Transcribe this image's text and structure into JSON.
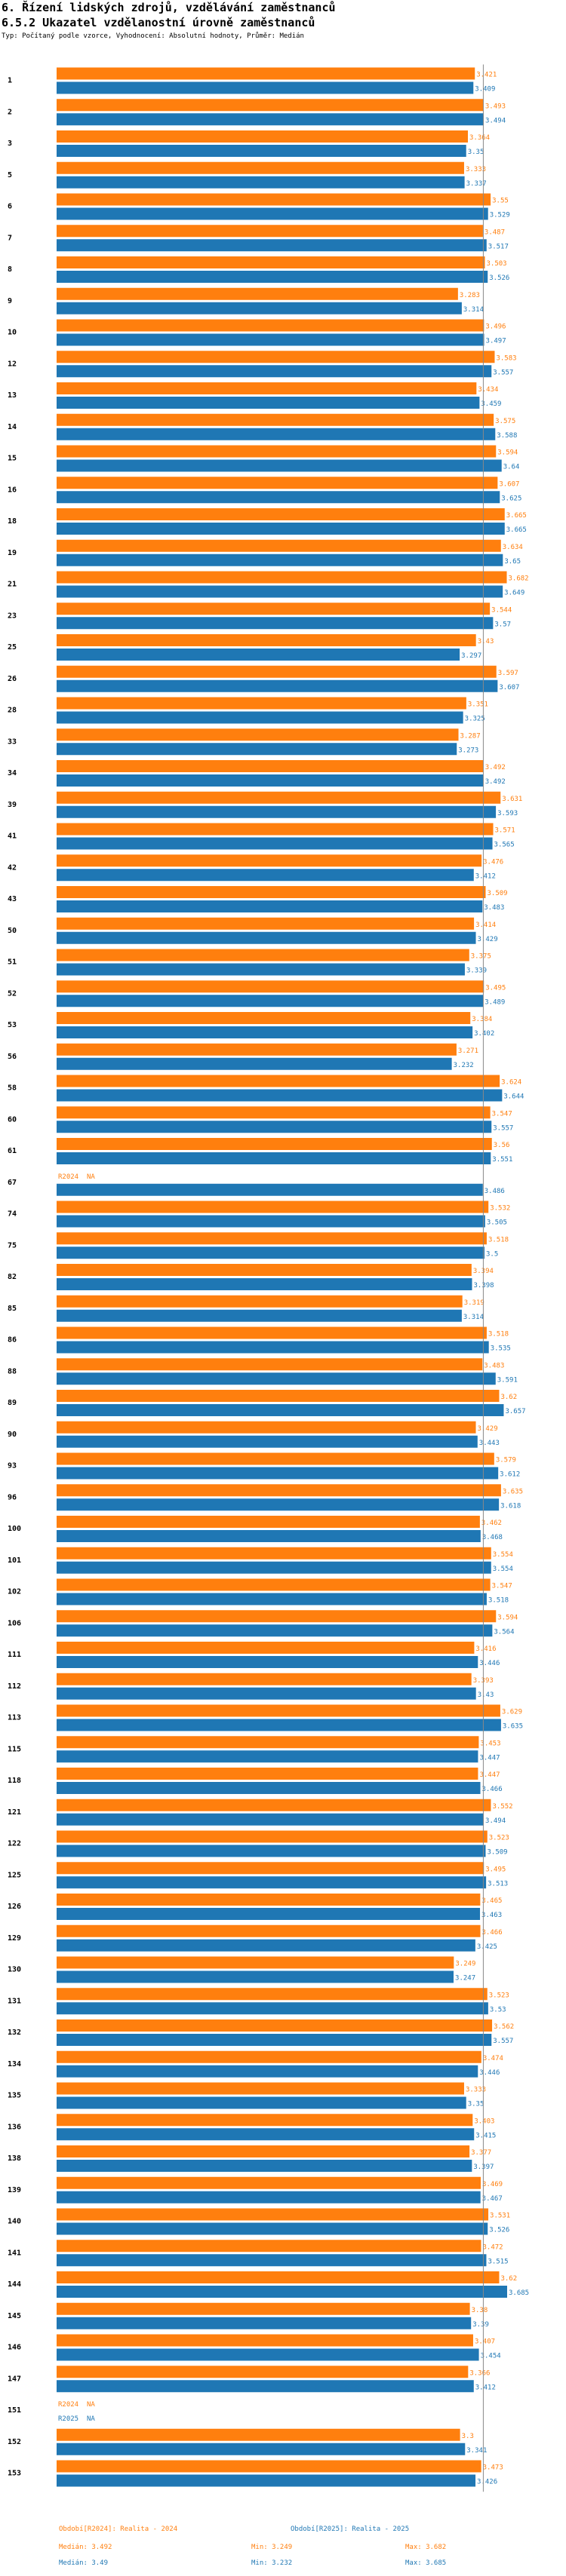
{
  "title": "6. Řízení lidských zdrojů, vzdělávání zaměstnanců",
  "subtitle": "6.5.2 Ukazatel vzdělanostní úrovně zaměstnanců",
  "description": "Typ: Počítaný podle vzorce, Vyhodnocení: Absolutní hodnoty, Průměr: Medián",
  "colors": {
    "r2024": "#ff7f0e",
    "r2025": "#1f77b4",
    "median_line": "#888888"
  },
  "chart_data": {
    "type": "bar",
    "orientation": "horizontal",
    "xlim": [
      0,
      3.685
    ],
    "median_reference": 3.49,
    "na_label": "NA",
    "series_labels": [
      "R2024",
      "R2025"
    ],
    "groups": [
      {
        "id": "1",
        "r2024": 3.421,
        "r2025": 3.409
      },
      {
        "id": "2",
        "r2024": 3.493,
        "r2025": 3.494
      },
      {
        "id": "3",
        "r2024": 3.364,
        "r2025": 3.35
      },
      {
        "id": "5",
        "r2024": 3.333,
        "r2025": 3.337
      },
      {
        "id": "6",
        "r2024": 3.55,
        "r2025": 3.529
      },
      {
        "id": "7",
        "r2024": 3.487,
        "r2025": 3.517
      },
      {
        "id": "8",
        "r2024": 3.503,
        "r2025": 3.526
      },
      {
        "id": "9",
        "r2024": 3.283,
        "r2025": 3.314
      },
      {
        "id": "10",
        "r2024": 3.496,
        "r2025": 3.497
      },
      {
        "id": "12",
        "r2024": 3.583,
        "r2025": 3.557
      },
      {
        "id": "13",
        "r2024": 3.434,
        "r2025": 3.459
      },
      {
        "id": "14",
        "r2024": 3.575,
        "r2025": 3.588
      },
      {
        "id": "15",
        "r2024": 3.594,
        "r2025": 3.64
      },
      {
        "id": "16",
        "r2024": 3.607,
        "r2025": 3.625
      },
      {
        "id": "18",
        "r2024": 3.665,
        "r2025": 3.665
      },
      {
        "id": "19",
        "r2024": 3.634,
        "r2025": 3.65
      },
      {
        "id": "21",
        "r2024": 3.682,
        "r2025": 3.649
      },
      {
        "id": "23",
        "r2024": 3.544,
        "r2025": 3.57
      },
      {
        "id": "25",
        "r2024": 3.43,
        "r2025": 3.297
      },
      {
        "id": "26",
        "r2024": 3.597,
        "r2025": 3.607
      },
      {
        "id": "28",
        "r2024": 3.351,
        "r2025": 3.325
      },
      {
        "id": "33",
        "r2024": 3.287,
        "r2025": 3.273
      },
      {
        "id": "34",
        "r2024": 3.492,
        "r2025": 3.492
      },
      {
        "id": "39",
        "r2024": 3.631,
        "r2025": 3.593
      },
      {
        "id": "41",
        "r2024": 3.571,
        "r2025": 3.565
      },
      {
        "id": "42",
        "r2024": 3.476,
        "r2025": 3.412
      },
      {
        "id": "43",
        "r2024": 3.509,
        "r2025": 3.483
      },
      {
        "id": "50",
        "r2024": 3.414,
        "r2025": 3.429
      },
      {
        "id": "51",
        "r2024": 3.375,
        "r2025": 3.339
      },
      {
        "id": "52",
        "r2024": 3.495,
        "r2025": 3.489
      },
      {
        "id": "53",
        "r2024": 3.384,
        "r2025": 3.402
      },
      {
        "id": "56",
        "r2024": 3.271,
        "r2025": 3.232
      },
      {
        "id": "58",
        "r2024": 3.624,
        "r2025": 3.644
      },
      {
        "id": "60",
        "r2024": 3.547,
        "r2025": 3.557
      },
      {
        "id": "61",
        "r2024": 3.56,
        "r2025": 3.551
      },
      {
        "id": "67",
        "r2024": null,
        "r2025": 3.486
      },
      {
        "id": "74",
        "r2024": 3.532,
        "r2025": 3.505
      },
      {
        "id": "75",
        "r2024": 3.518,
        "r2025": 3.5
      },
      {
        "id": "82",
        "r2024": 3.394,
        "r2025": 3.398
      },
      {
        "id": "85",
        "r2024": 3.319,
        "r2025": 3.314
      },
      {
        "id": "86",
        "r2024": 3.518,
        "r2025": 3.535
      },
      {
        "id": "88",
        "r2024": 3.483,
        "r2025": 3.591
      },
      {
        "id": "89",
        "r2024": 3.62,
        "r2025": 3.657
      },
      {
        "id": "90",
        "r2024": 3.429,
        "r2025": 3.443
      },
      {
        "id": "93",
        "r2024": 3.579,
        "r2025": 3.612
      },
      {
        "id": "96",
        "r2024": 3.635,
        "r2025": 3.618
      },
      {
        "id": "100",
        "r2024": 3.462,
        "r2025": 3.468
      },
      {
        "id": "101",
        "r2024": 3.554,
        "r2025": 3.554
      },
      {
        "id": "102",
        "r2024": 3.547,
        "r2025": 3.518
      },
      {
        "id": "106",
        "r2024": 3.594,
        "r2025": 3.564
      },
      {
        "id": "111",
        "r2024": 3.416,
        "r2025": 3.446
      },
      {
        "id": "112",
        "r2024": 3.393,
        "r2025": 3.43
      },
      {
        "id": "113",
        "r2024": 3.629,
        "r2025": 3.635
      },
      {
        "id": "115",
        "r2024": 3.453,
        "r2025": 3.447
      },
      {
        "id": "118",
        "r2024": 3.447,
        "r2025": 3.466
      },
      {
        "id": "121",
        "r2024": 3.552,
        "r2025": 3.494
      },
      {
        "id": "122",
        "r2024": 3.523,
        "r2025": 3.509
      },
      {
        "id": "125",
        "r2024": 3.495,
        "r2025": 3.513
      },
      {
        "id": "126",
        "r2024": 3.465,
        "r2025": 3.463
      },
      {
        "id": "129",
        "r2024": 3.466,
        "r2025": 3.425
      },
      {
        "id": "130",
        "r2024": 3.249,
        "r2025": 3.247
      },
      {
        "id": "131",
        "r2024": 3.523,
        "r2025": 3.53
      },
      {
        "id": "132",
        "r2024": 3.562,
        "r2025": 3.557
      },
      {
        "id": "134",
        "r2024": 3.474,
        "r2025": 3.446
      },
      {
        "id": "135",
        "r2024": 3.333,
        "r2025": 3.35
      },
      {
        "id": "136",
        "r2024": 3.403,
        "r2025": 3.415
      },
      {
        "id": "138",
        "r2024": 3.377,
        "r2025": 3.397
      },
      {
        "id": "139",
        "r2024": 3.469,
        "r2025": 3.467
      },
      {
        "id": "140",
        "r2024": 3.531,
        "r2025": 3.526
      },
      {
        "id": "141",
        "r2024": 3.472,
        "r2025": 3.515
      },
      {
        "id": "144",
        "r2024": 3.62,
        "r2025": 3.685
      },
      {
        "id": "145",
        "r2024": 3.38,
        "r2025": 3.39
      },
      {
        "id": "146",
        "r2024": 3.407,
        "r2025": 3.454
      },
      {
        "id": "147",
        "r2024": 3.366,
        "r2025": 3.412
      },
      {
        "id": "151",
        "r2024": null,
        "r2025": null
      },
      {
        "id": "152",
        "r2024": 3.3,
        "r2025": 3.341
      },
      {
        "id": "153",
        "r2024": 3.473,
        "r2025": 3.426
      }
    ]
  },
  "footer": {
    "legend_2024": "Období[R2024]: Realita - 2024",
    "legend_2025": "Období[R2025]: Realita - 2025",
    "stats_2024": {
      "median": "Medián: 3.492",
      "min": "Min: 3.249",
      "max": "Max: 3.682"
    },
    "stats_2025": {
      "median": "Medián: 3.49",
      "min": "Min: 3.232",
      "max": "Max: 3.685"
    }
  }
}
